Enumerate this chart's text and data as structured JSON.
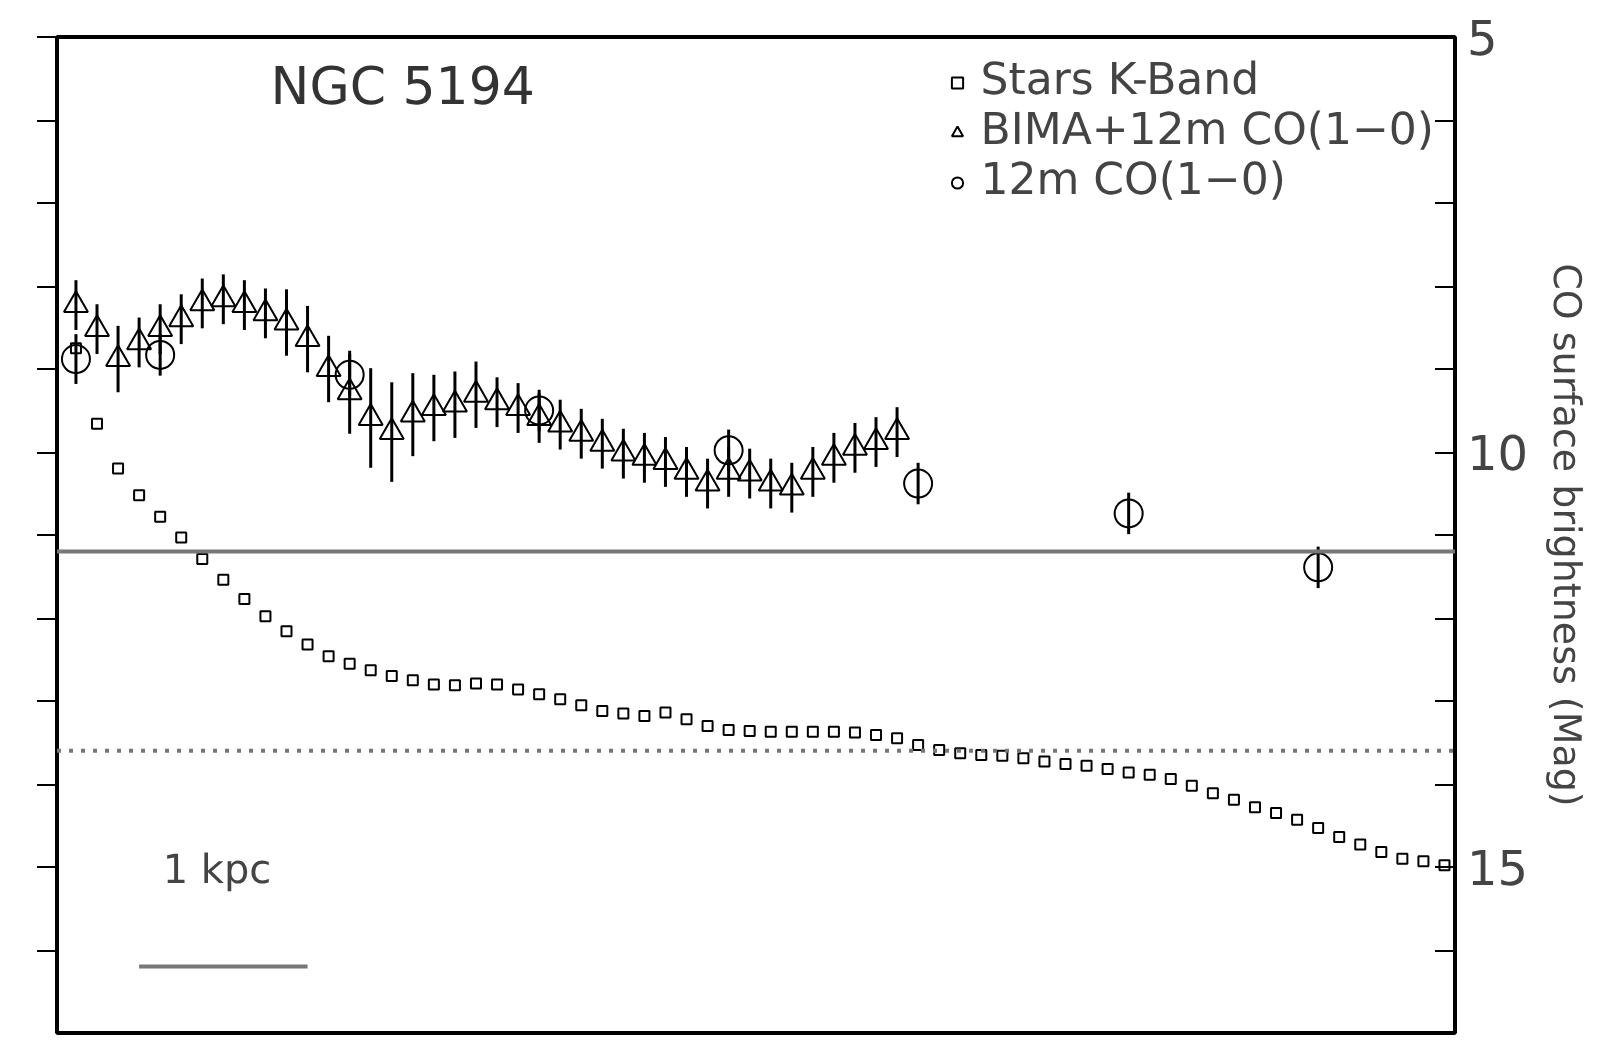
{
  "chart_data": {
    "type": "scatter",
    "title": "NGC 5194",
    "ylabel": "CO surface brightness (Mag)",
    "categories": [
      null,
      null,
      null,
      null,
      null,
      null,
      null,
      null,
      null,
      null,
      null,
      null,
      null,
      null,
      null,
      null,
      null,
      null,
      null,
      null,
      null,
      null,
      null,
      null,
      null,
      null,
      null,
      null,
      null,
      null,
      null,
      null,
      null,
      null,
      null,
      null,
      null,
      null,
      null,
      null,
      null,
      null,
      null,
      null,
      null,
      null,
      null,
      null,
      null,
      null,
      null,
      null,
      null,
      null,
      null,
      null,
      null,
      null,
      null,
      null,
      null,
      null,
      null,
      null,
      null,
      null
    ],
    "ylim": [
      17,
      5
    ],
    "yticks": [
      5,
      {
        "value": 6,
        "label": null
      },
      {
        "value": 7,
        "label": null
      },
      {
        "value": 8,
        "label": null
      },
      {
        "value": 9,
        "label": null
      },
      10,
      {
        "value": 11,
        "label": null
      },
      {
        "value": 12,
        "label": null
      },
      {
        "value": 13,
        "label": null
      },
      {
        "value": 14,
        "label": null
      },
      15,
      {
        "value": 16,
        "label": null
      }
    ],
    "tick_labels": "y",
    "grid": false,
    "legend": "top right",
    "series": [
      {
        "name": "Stars K-Band",
        "color": "#000000",
        "marker": "square",
        "values": [
          8.75,
          9.66,
          10.2,
          10.52,
          10.78,
          11.03,
          11.29,
          11.54,
          11.77,
          11.98,
          12.16,
          12.32,
          12.46,
          12.55,
          12.63,
          12.7,
          12.75,
          12.8,
          12.81,
          12.79,
          12.8,
          12.86,
          12.92,
          12.98,
          13.05,
          13.12,
          13.15,
          13.18,
          13.14,
          13.22,
          13.3,
          13.35,
          13.36,
          13.37,
          13.37,
          13.37,
          13.37,
          13.38,
          13.41,
          13.45,
          13.53,
          13.59,
          13.63,
          13.65,
          13.66,
          13.69,
          13.73,
          13.76,
          13.78,
          13.82,
          13.86,
          13.89,
          13.94,
          14.02,
          14.11,
          14.19,
          14.28,
          14.35,
          14.43,
          14.53,
          14.64,
          14.73,
          14.82,
          14.9,
          14.93,
          14.98
        ]
      },
      {
        "name": "BIMA+12m CO(1−0)",
        "color": "#000000",
        "marker": "triangle",
        "values": [
          8.23,
          8.52,
          8.88,
          8.68,
          8.52,
          8.4,
          8.21,
          8.16,
          8.23,
          8.33,
          8.44,
          8.64,
          9.0,
          9.28,
          9.59,
          9.76,
          9.55,
          9.47,
          9.43,
          9.31,
          9.4,
          9.47,
          9.59,
          9.67,
          9.78,
          9.9,
          10.02,
          10.07,
          10.12,
          10.24,
          10.38,
          10.24,
          10.26,
          10.38,
          10.43,
          10.24,
          10.07,
          9.95,
          9.88,
          9.76,
          null,
          null,
          null,
          null,
          null,
          null,
          null,
          null,
          null,
          null,
          null,
          null,
          null,
          null,
          null,
          null,
          null,
          null,
          null,
          null,
          null,
          null,
          null,
          null,
          null,
          null
        ],
        "errors": [
          0.3,
          0.3,
          0.4,
          0.3,
          0.3,
          0.3,
          0.3,
          0.3,
          0.3,
          0.3,
          0.4,
          0.4,
          0.4,
          0.5,
          0.6,
          0.6,
          0.5,
          0.4,
          0.4,
          0.4,
          0.3,
          0.3,
          0.3,
          0.3,
          0.3,
          0.3,
          0.3,
          0.3,
          0.3,
          0.3,
          0.3,
          0.3,
          0.3,
          0.3,
          0.3,
          0.3,
          0.3,
          0.3,
          0.3,
          0.3,
          null,
          null,
          null,
          null,
          null,
          null,
          null,
          null,
          null,
          null,
          null,
          null,
          null,
          null,
          null,
          null,
          null,
          null,
          null,
          null,
          null,
          null,
          null,
          null,
          null,
          null
        ]
      },
      {
        "name": "12m CO(1−0)",
        "color": "#000000",
        "marker": "circle",
        "values": [
          8.88,
          null,
          null,
          null,
          8.83,
          null,
          null,
          null,
          null,
          null,
          null,
          null,
          null,
          9.07,
          null,
          null,
          null,
          null,
          null,
          null,
          null,
          null,
          9.5,
          null,
          null,
          null,
          null,
          null,
          null,
          null,
          null,
          9.98,
          null,
          null,
          null,
          null,
          null,
          null,
          null,
          null,
          10.38,
          null,
          null,
          null,
          null,
          null,
          null,
          null,
          null,
          null,
          10.74,
          null,
          null,
          null,
          null,
          null,
          null,
          null,
          null,
          11.39,
          null,
          null,
          null,
          null,
          null,
          null
        ],
        "errors": [
          0.3,
          null,
          null,
          null,
          0.25,
          null,
          null,
          null,
          null,
          null,
          null,
          null,
          null,
          0.25,
          null,
          null,
          null,
          null,
          null,
          null,
          null,
          null,
          0.25,
          null,
          null,
          null,
          null,
          null,
          null,
          null,
          null,
          0.25,
          null,
          null,
          null,
          null,
          null,
          null,
          null,
          null,
          0.25,
          null,
          null,
          null,
          null,
          null,
          null,
          null,
          null,
          null,
          0.25,
          null,
          null,
          null,
          null,
          null,
          null,
          null,
          null,
          0.25,
          null,
          null,
          null,
          null,
          null,
          null
        ]
      },
      {
        "type": "line",
        "color": "#777777",
        "values": [
          null,
          null,
          null,
          16.2,
          16.2,
          16.2,
          16.2,
          16.2,
          16.2,
          16.2,
          16.2,
          16.2,
          null,
          null,
          null,
          null,
          null,
          null,
          null,
          null,
          null,
          null,
          null,
          null,
          null,
          null,
          null,
          null,
          null,
          null,
          null,
          null,
          null,
          null,
          null,
          null,
          null,
          null,
          null,
          null,
          null,
          null,
          null,
          null,
          null,
          null,
          null,
          null,
          null,
          null,
          null,
          null,
          null,
          null,
          null,
          null,
          null,
          null,
          null,
          null,
          null,
          null,
          null,
          null,
          null,
          null
        ]
      }
    ],
    "ref_lines": [
      {
        "axis": "y",
        "value": 11.2,
        "color": "#777777",
        "line_style": "solid"
      },
      {
        "axis": "y",
        "value": 13.6,
        "color": "#777777",
        "line_style": "dotted"
      }
    ],
    "annotations": [
      "1 kpc"
    ]
  }
}
